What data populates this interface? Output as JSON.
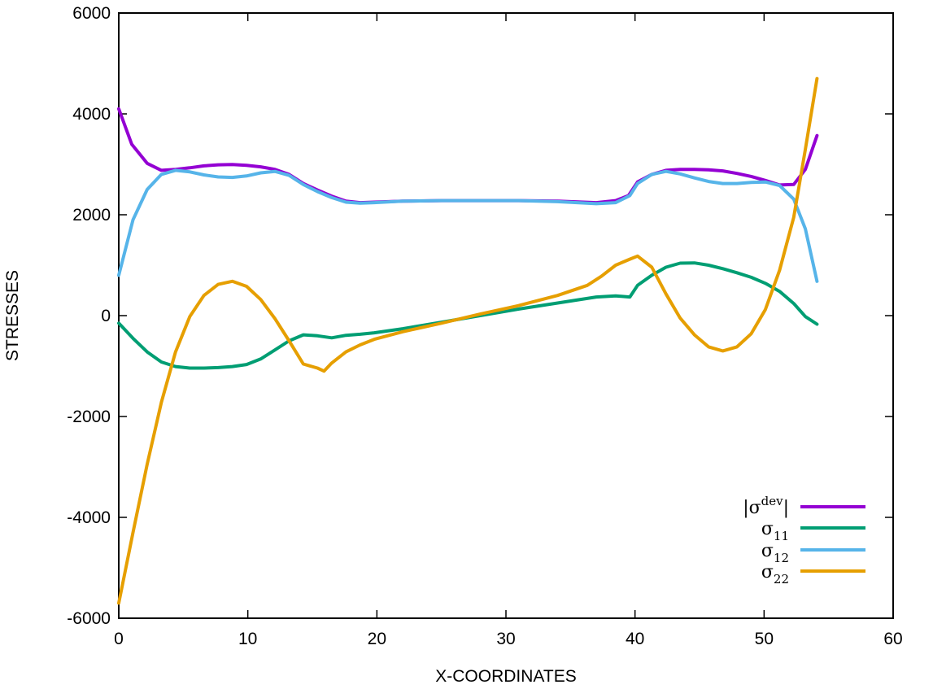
{
  "chart_data": {
    "type": "line",
    "xlabel": "X-COORDINATES",
    "ylabel": "STRESSES",
    "xlim": [
      0,
      60
    ],
    "ylim": [
      -6000,
      6000
    ],
    "xticks": [
      0,
      10,
      20,
      30,
      40,
      50,
      60
    ],
    "yticks": [
      -6000,
      -4000,
      -2000,
      0,
      2000,
      4000,
      6000
    ],
    "grid": false,
    "legend_position": "bottom-right",
    "series": [
      {
        "name": "|σ^dev|",
        "legend_main": "|σ",
        "legend_sup": "dev",
        "legend_end": "|",
        "color": "#9400d3",
        "x": [
          0,
          1,
          2.2,
          3.3,
          4.4,
          5.5,
          6.6,
          7.7,
          8.8,
          9.9,
          11,
          12.1,
          13.2,
          14.3,
          15.4,
          16.5,
          17.6,
          18.7,
          19.8,
          22,
          25,
          28,
          31,
          34,
          37,
          38.5,
          39.5,
          40.2,
          41.3,
          42.4,
          43.5,
          44.6,
          45.7,
          46.8,
          47.9,
          49,
          50.1,
          51.2,
          52.3,
          53.2,
          54.1
        ],
        "y": [
          4100,
          3400,
          3020,
          2880,
          2900,
          2930,
          2970,
          2990,
          2995,
          2980,
          2950,
          2900,
          2800,
          2620,
          2490,
          2370,
          2270,
          2240,
          2250,
          2270,
          2280,
          2280,
          2280,
          2270,
          2240,
          2280,
          2380,
          2650,
          2800,
          2880,
          2900,
          2900,
          2890,
          2870,
          2820,
          2760,
          2680,
          2590,
          2600,
          2900,
          3570
        ]
      },
      {
        "name": "σ11",
        "legend_main": "σ",
        "legend_sub": "11",
        "color": "#009e73",
        "x": [
          0,
          1.1,
          2.2,
          3.3,
          4.4,
          5.5,
          6.6,
          7.7,
          8.8,
          9.9,
          11,
          12.1,
          13.2,
          14.3,
          15.4,
          16.5,
          17.6,
          18.7,
          19.8,
          22,
          25,
          28,
          31,
          34,
          37,
          38.5,
          39.6,
          40.2,
          41.3,
          42.4,
          43.5,
          44.6,
          45.7,
          46.8,
          47.9,
          49,
          50.1,
          51.2,
          52.3,
          53.2,
          54.1
        ],
        "y": [
          -150,
          -450,
          -720,
          -920,
          -1010,
          -1040,
          -1040,
          -1030,
          -1010,
          -970,
          -860,
          -680,
          -500,
          -380,
          -400,
          -440,
          -390,
          -370,
          -340,
          -260,
          -130,
          0,
          130,
          250,
          370,
          390,
          370,
          600,
          800,
          960,
          1040,
          1045,
          1000,
          930,
          850,
          760,
          640,
          480,
          240,
          -20,
          -170
        ]
      },
      {
        "name": "σ12",
        "legend_main": "σ",
        "legend_sub": "12",
        "color": "#56b4e9",
        "x": [
          0,
          1.1,
          2.2,
          3.3,
          4.4,
          5.5,
          6.6,
          7.7,
          8.8,
          9.9,
          11,
          12.1,
          13.2,
          14.3,
          15.4,
          16.5,
          17.6,
          18.7,
          19.8,
          22,
          25,
          28,
          31,
          34,
          37,
          38.5,
          39.6,
          40.2,
          41.3,
          42.4,
          43.5,
          44.6,
          45.7,
          46.8,
          47.9,
          49,
          50.1,
          51.2,
          52.3,
          53.2,
          54.1
        ],
        "y": [
          800,
          1900,
          2500,
          2800,
          2880,
          2850,
          2790,
          2750,
          2740,
          2770,
          2830,
          2860,
          2780,
          2600,
          2460,
          2340,
          2250,
          2230,
          2240,
          2270,
          2280,
          2280,
          2280,
          2260,
          2220,
          2240,
          2380,
          2620,
          2800,
          2860,
          2810,
          2730,
          2660,
          2620,
          2620,
          2640,
          2650,
          2580,
          2310,
          1720,
          680
        ]
      },
      {
        "name": "σ22",
        "legend_main": "σ",
        "legend_sub": "22",
        "color": "#e69f00",
        "x": [
          0,
          1.1,
          2.2,
          3.3,
          4.4,
          5.5,
          6.6,
          7.7,
          8.8,
          9.9,
          11,
          12.1,
          13.2,
          14.3,
          15.4,
          15.9,
          16.5,
          17.6,
          18.7,
          19.8,
          22,
          25,
          28,
          31,
          34,
          36.3,
          37.4,
          38.5,
          39.6,
          40.2,
          41.3,
          42.4,
          43.5,
          44.6,
          45.7,
          46.8,
          47.9,
          49,
          50.1,
          51.2,
          52.3,
          53.2,
          54.1
        ],
        "y": [
          -5700,
          -4300,
          -2950,
          -1720,
          -720,
          -20,
          400,
          620,
          680,
          580,
          320,
          -60,
          -500,
          -960,
          -1040,
          -1100,
          -940,
          -720,
          -580,
          -470,
          -320,
          -150,
          30,
          200,
          400,
          600,
          780,
          1000,
          1120,
          1180,
          960,
          430,
          -50,
          -380,
          -620,
          -700,
          -620,
          -360,
          120,
          900,
          1950,
          3300,
          4700
        ]
      }
    ]
  }
}
